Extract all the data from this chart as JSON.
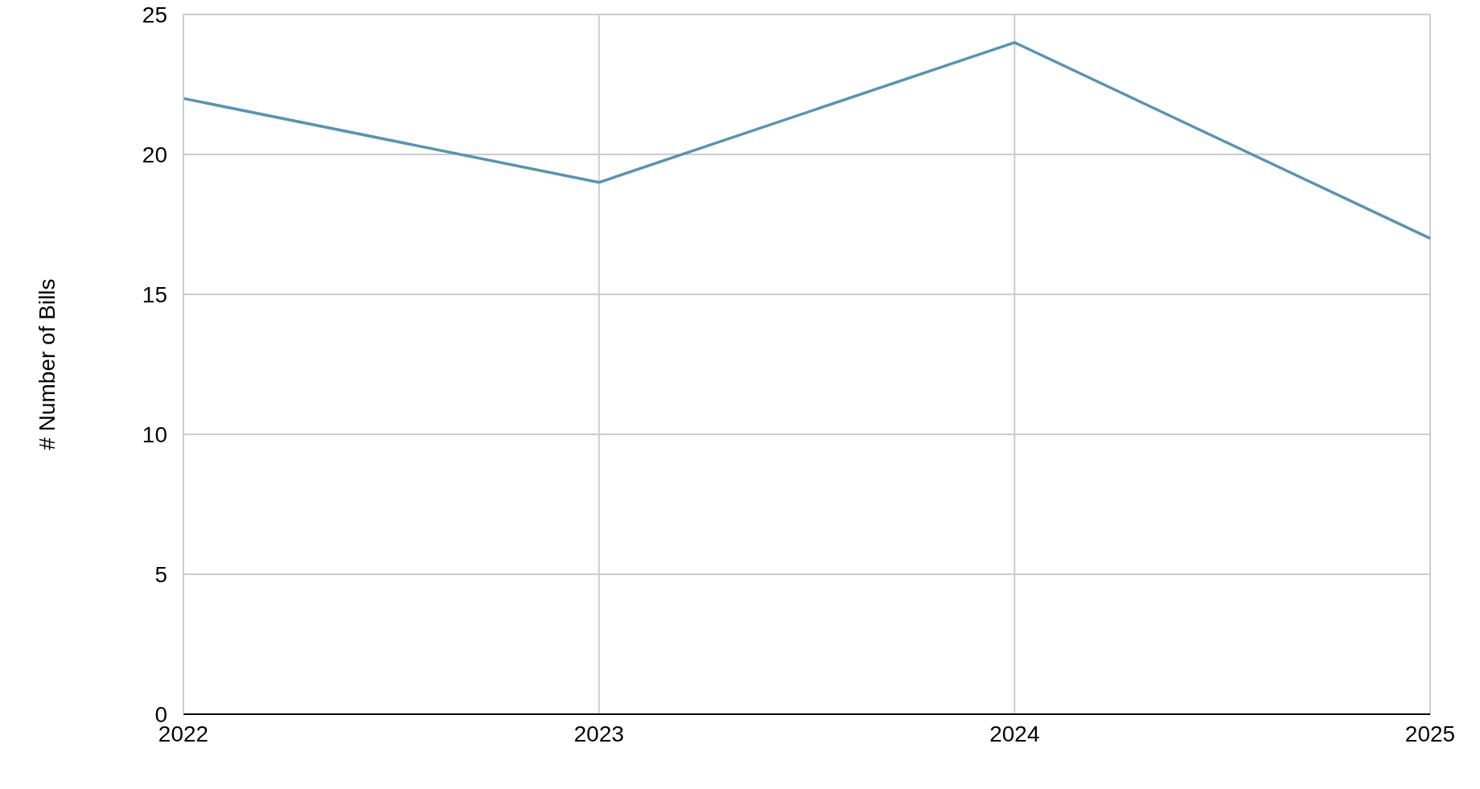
{
  "chart_data": {
    "type": "line",
    "ylabel": "# Number of Bills",
    "categories": [
      "2022",
      "2023",
      "2024",
      "2025"
    ],
    "series": [
      {
        "color": "#5a93b0",
        "values": [
          22,
          19,
          24,
          17
        ]
      }
    ],
    "ylim": [
      0,
      25
    ],
    "yticks": [
      0,
      5,
      10,
      15,
      20,
      25
    ],
    "grid": true,
    "legend": false,
    "marker": "none",
    "line_style": "solid"
  }
}
